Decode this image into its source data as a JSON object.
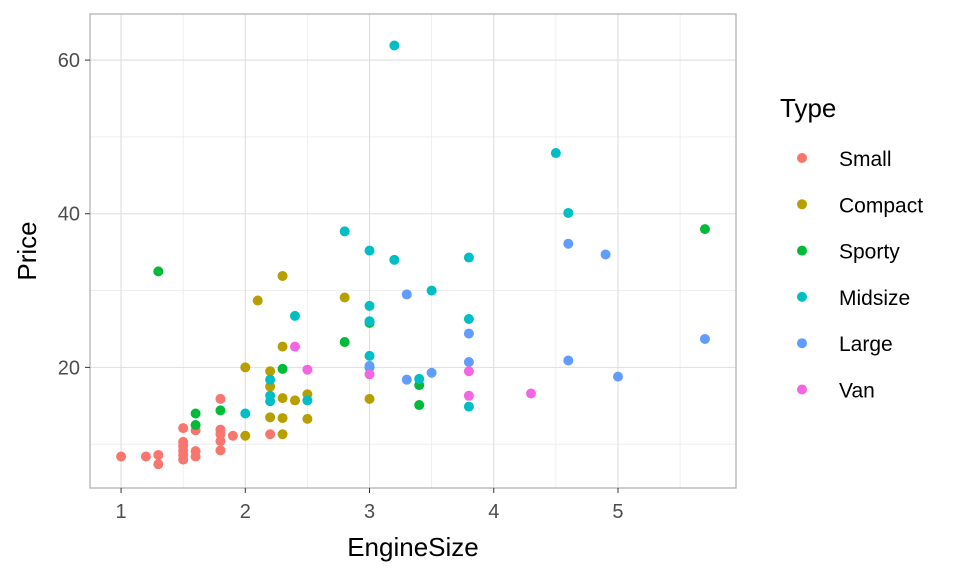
{
  "chart_data": {
    "type": "scatter",
    "xlabel": "EngineSize",
    "ylabel": "Price",
    "xlim": [
      0.75,
      5.95
    ],
    "ylim": [
      4.3,
      66.0
    ],
    "xticks": [
      1,
      2,
      3,
      4,
      5
    ],
    "xtick_labels": [
      "1",
      "2",
      "3",
      "4",
      "5"
    ],
    "yticks": [
      20,
      40,
      60
    ],
    "ytick_labels": [
      "20",
      "40",
      "60"
    ],
    "grid": true,
    "legend": {
      "title": "Type",
      "placement": "right"
    },
    "series": [
      {
        "name": "Small",
        "color": "#F8766D",
        "points": [
          [
            1.0,
            8.4
          ],
          [
            1.2,
            8.4
          ],
          [
            1.3,
            8.6
          ],
          [
            1.3,
            7.4
          ],
          [
            1.5,
            12.1
          ],
          [
            1.5,
            10.3
          ],
          [
            1.5,
            9.8
          ],
          [
            1.5,
            9.2
          ],
          [
            1.5,
            8.6
          ],
          [
            1.5,
            8.0
          ],
          [
            1.6,
            11.8
          ],
          [
            1.6,
            9.1
          ],
          [
            1.6,
            8.4
          ],
          [
            1.8,
            15.9
          ],
          [
            1.8,
            11.9
          ],
          [
            1.8,
            11.3
          ],
          [
            1.8,
            10.4
          ],
          [
            1.8,
            9.2
          ],
          [
            1.9,
            11.1
          ],
          [
            2.2,
            11.3
          ]
        ]
      },
      {
        "name": "Compact",
        "color": "#B79F00",
        "points": [
          [
            2.0,
            20.0
          ],
          [
            2.0,
            11.1
          ],
          [
            2.1,
            28.7
          ],
          [
            2.2,
            19.5
          ],
          [
            2.2,
            17.5
          ],
          [
            2.2,
            13.5
          ],
          [
            2.3,
            31.9
          ],
          [
            2.3,
            22.7
          ],
          [
            2.3,
            16.0
          ],
          [
            2.3,
            13.4
          ],
          [
            2.3,
            11.3
          ],
          [
            2.4,
            15.7
          ],
          [
            2.5,
            16.5
          ],
          [
            2.5,
            13.3
          ],
          [
            2.8,
            29.1
          ],
          [
            3.0,
            15.9
          ]
        ]
      },
      {
        "name": "Sporty",
        "color": "#00BA38",
        "points": [
          [
            1.3,
            32.5
          ],
          [
            1.6,
            14.0
          ],
          [
            1.6,
            12.5
          ],
          [
            1.8,
            14.4
          ],
          [
            2.3,
            19.8
          ],
          [
            2.8,
            23.3
          ],
          [
            3.0,
            25.8
          ],
          [
            3.4,
            17.7
          ],
          [
            3.4,
            15.1
          ],
          [
            5.7,
            38.0
          ]
        ]
      },
      {
        "name": "Midsize",
        "color": "#00BFC4",
        "points": [
          [
            2.0,
            14.0
          ],
          [
            2.2,
            18.4
          ],
          [
            2.2,
            16.3
          ],
          [
            2.2,
            15.6
          ],
          [
            2.4,
            26.7
          ],
          [
            2.5,
            15.7
          ],
          [
            2.8,
            37.7
          ],
          [
            3.0,
            35.2
          ],
          [
            3.0,
            28.0
          ],
          [
            3.0,
            26.0
          ],
          [
            3.0,
            21.5
          ],
          [
            3.0,
            20.0
          ],
          [
            3.2,
            34.0
          ],
          [
            3.2,
            61.9
          ],
          [
            3.4,
            18.5
          ],
          [
            3.5,
            30.0
          ],
          [
            3.8,
            34.3
          ],
          [
            3.8,
            26.3
          ],
          [
            3.8,
            14.9
          ],
          [
            4.5,
            47.9
          ],
          [
            4.6,
            40.1
          ]
        ]
      },
      {
        "name": "Large",
        "color": "#619CFF",
        "points": [
          [
            3.0,
            20.2
          ],
          [
            3.3,
            29.5
          ],
          [
            3.3,
            18.4
          ],
          [
            3.5,
            19.3
          ],
          [
            3.8,
            24.4
          ],
          [
            3.8,
            20.7
          ],
          [
            4.6,
            36.1
          ],
          [
            4.6,
            20.9
          ],
          [
            4.9,
            34.7
          ],
          [
            5.0,
            18.8
          ],
          [
            5.7,
            23.7
          ]
        ]
      },
      {
        "name": "Van",
        "color": "#F564E3",
        "points": [
          [
            2.4,
            22.7
          ],
          [
            2.5,
            19.7
          ],
          [
            3.0,
            19.1
          ],
          [
            3.8,
            19.5
          ],
          [
            3.8,
            16.3
          ],
          [
            4.3,
            16.6
          ]
        ]
      }
    ]
  }
}
